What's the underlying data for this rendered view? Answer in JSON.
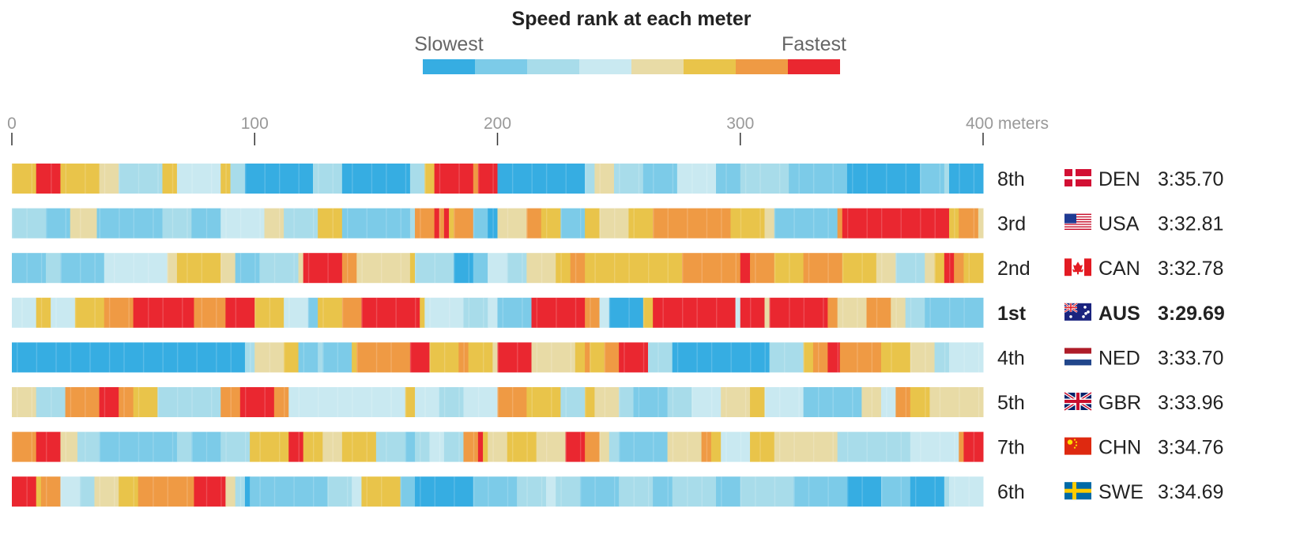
{
  "chart_data": {
    "type": "heatmap",
    "title": "Speed rank at each meter",
    "legend": {
      "low_label": "Slowest",
      "high_label": "Fastest",
      "colors": [
        "#36ade2",
        "#7ccbe8",
        "#a8dcea",
        "#c9e9f1",
        "#e8dba6",
        "#e9c44a",
        "#ef9a44",
        "#ea2730"
      ],
      "placement": "top-center"
    },
    "x_ticks": [
      0,
      100,
      200,
      300,
      400
    ],
    "x_tick_labels": [
      "0",
      "100",
      "200",
      "300",
      "400 meters"
    ],
    "x_range": [
      0,
      400
    ],
    "level_count": 8,
    "rows": [
      {
        "rank": "8th",
        "country": "DEN",
        "time": "3:35.70",
        "flag": "denmark-flag",
        "highlight": false,
        "segments": [
          [
            0,
            5
          ],
          [
            10,
            7
          ],
          [
            20,
            5
          ],
          [
            36,
            4
          ],
          [
            44,
            2
          ],
          [
            62,
            5
          ],
          [
            68,
            3
          ],
          [
            86,
            5
          ],
          [
            90,
            2
          ],
          [
            96,
            0
          ],
          [
            124,
            2
          ],
          [
            136,
            0
          ],
          [
            164,
            2
          ],
          [
            170,
            5
          ],
          [
            174,
            7
          ],
          [
            190,
            6
          ],
          [
            192,
            7
          ],
          [
            200,
            0
          ],
          [
            236,
            2
          ],
          [
            240,
            4
          ],
          [
            248,
            2
          ],
          [
            260,
            1
          ],
          [
            274,
            3
          ],
          [
            290,
            1
          ],
          [
            300,
            2
          ],
          [
            320,
            1
          ],
          [
            344,
            0
          ],
          [
            374,
            1
          ],
          [
            384,
            2
          ],
          [
            386,
            0
          ]
        ]
      },
      {
        "rank": "3rd",
        "country": "USA",
        "time": "3:32.81",
        "flag": "usa-flag",
        "highlight": false,
        "segments": [
          [
            0,
            2
          ],
          [
            14,
            1
          ],
          [
            24,
            4
          ],
          [
            35,
            1
          ],
          [
            62,
            2
          ],
          [
            74,
            1
          ],
          [
            86,
            3
          ],
          [
            104,
            4
          ],
          [
            112,
            2
          ],
          [
            126,
            5
          ],
          [
            136,
            1
          ],
          [
            164,
            2
          ],
          [
            166,
            6
          ],
          [
            174,
            7
          ],
          [
            176,
            6
          ],
          [
            178,
            7
          ],
          [
            180,
            5
          ],
          [
            182,
            6
          ],
          [
            190,
            1
          ],
          [
            196,
            0
          ],
          [
            200,
            4
          ],
          [
            212,
            6
          ],
          [
            218,
            5
          ],
          [
            226,
            1
          ],
          [
            236,
            5
          ],
          [
            242,
            4
          ],
          [
            254,
            5
          ],
          [
            264,
            6
          ],
          [
            296,
            5
          ],
          [
            310,
            4
          ],
          [
            314,
            1
          ],
          [
            340,
            6
          ],
          [
            342,
            7
          ],
          [
            386,
            5
          ],
          [
            390,
            6
          ],
          [
            398,
            4
          ]
        ]
      },
      {
        "rank": "2nd",
        "country": "CAN",
        "time": "3:32.78",
        "flag": "canada-flag",
        "highlight": false,
        "segments": [
          [
            0,
            1
          ],
          [
            14,
            2
          ],
          [
            20,
            1
          ],
          [
            38,
            3
          ],
          [
            64,
            4
          ],
          [
            68,
            5
          ],
          [
            86,
            4
          ],
          [
            92,
            1
          ],
          [
            102,
            2
          ],
          [
            118,
            4
          ],
          [
            120,
            7
          ],
          [
            136,
            6
          ],
          [
            142,
            4
          ],
          [
            164,
            5
          ],
          [
            166,
            2
          ],
          [
            182,
            0
          ],
          [
            190,
            1
          ],
          [
            196,
            3
          ],
          [
            204,
            2
          ],
          [
            212,
            4
          ],
          [
            224,
            5
          ],
          [
            230,
            6
          ],
          [
            236,
            5
          ],
          [
            276,
            6
          ],
          [
            300,
            7
          ],
          [
            304,
            6
          ],
          [
            314,
            5
          ],
          [
            326,
            6
          ],
          [
            342,
            5
          ],
          [
            356,
            4
          ],
          [
            364,
            2
          ],
          [
            376,
            4
          ],
          [
            380,
            5
          ],
          [
            384,
            7
          ],
          [
            388,
            6
          ],
          [
            392,
            5
          ]
        ]
      },
      {
        "rank": "1st",
        "country": "AUS",
        "time": "3:29.69",
        "flag": "australia-flag",
        "highlight": true,
        "segments": [
          [
            0,
            3
          ],
          [
            10,
            5
          ],
          [
            16,
            3
          ],
          [
            26,
            5
          ],
          [
            38,
            6
          ],
          [
            50,
            7
          ],
          [
            75,
            6
          ],
          [
            88,
            7
          ],
          [
            100,
            5
          ],
          [
            112,
            3
          ],
          [
            122,
            1
          ],
          [
            126,
            5
          ],
          [
            136,
            6
          ],
          [
            144,
            7
          ],
          [
            168,
            5
          ],
          [
            170,
            3
          ],
          [
            186,
            2
          ],
          [
            196,
            3
          ],
          [
            200,
            1
          ],
          [
            214,
            7
          ],
          [
            236,
            6
          ],
          [
            242,
            3
          ],
          [
            246,
            0
          ],
          [
            260,
            5
          ],
          [
            264,
            7
          ],
          [
            298,
            3
          ],
          [
            300,
            7
          ],
          [
            310,
            4
          ],
          [
            312,
            7
          ],
          [
            336,
            6
          ],
          [
            340,
            4
          ],
          [
            352,
            6
          ],
          [
            362,
            4
          ],
          [
            368,
            2
          ],
          [
            376,
            1
          ]
        ]
      },
      {
        "rank": "4th",
        "country": "NED",
        "time": "3:33.70",
        "flag": "netherlands-flag",
        "highlight": false,
        "segments": [
          [
            0,
            0
          ],
          [
            96,
            2
          ],
          [
            100,
            4
          ],
          [
            112,
            5
          ],
          [
            118,
            1
          ],
          [
            126,
            2
          ],
          [
            128,
            1
          ],
          [
            140,
            5
          ],
          [
            142,
            6
          ],
          [
            164,
            7
          ],
          [
            172,
            5
          ],
          [
            184,
            6
          ],
          [
            188,
            5
          ],
          [
            198,
            4
          ],
          [
            200,
            7
          ],
          [
            214,
            4
          ],
          [
            232,
            5
          ],
          [
            236,
            6
          ],
          [
            238,
            5
          ],
          [
            244,
            6
          ],
          [
            250,
            7
          ],
          [
            262,
            2
          ],
          [
            272,
            0
          ],
          [
            312,
            2
          ],
          [
            326,
            5
          ],
          [
            330,
            6
          ],
          [
            336,
            7
          ],
          [
            341,
            6
          ],
          [
            358,
            5
          ],
          [
            370,
            4
          ],
          [
            380,
            2
          ],
          [
            386,
            3
          ]
        ]
      },
      {
        "rank": "5th",
        "country": "GBR",
        "time": "3:33.96",
        "flag": "uk-flag",
        "highlight": false,
        "segments": [
          [
            0,
            4
          ],
          [
            10,
            2
          ],
          [
            22,
            6
          ],
          [
            36,
            7
          ],
          [
            44,
            6
          ],
          [
            50,
            5
          ],
          [
            60,
            2
          ],
          [
            86,
            6
          ],
          [
            94,
            7
          ],
          [
            108,
            6
          ],
          [
            114,
            3
          ],
          [
            162,
            5
          ],
          [
            166,
            3
          ],
          [
            176,
            2
          ],
          [
            186,
            3
          ],
          [
            200,
            6
          ],
          [
            212,
            5
          ],
          [
            226,
            2
          ],
          [
            236,
            5
          ],
          [
            240,
            4
          ],
          [
            250,
            2
          ],
          [
            256,
            1
          ],
          [
            270,
            2
          ],
          [
            280,
            3
          ],
          [
            292,
            4
          ],
          [
            304,
            5
          ],
          [
            310,
            3
          ],
          [
            326,
            1
          ],
          [
            350,
            4
          ],
          [
            358,
            3
          ],
          [
            364,
            6
          ],
          [
            370,
            5
          ],
          [
            378,
            4
          ]
        ]
      },
      {
        "rank": "7th",
        "country": "CHN",
        "time": "3:34.76",
        "flag": "china-flag",
        "highlight": false,
        "segments": [
          [
            0,
            6
          ],
          [
            10,
            7
          ],
          [
            20,
            4
          ],
          [
            27,
            2
          ],
          [
            36,
            1
          ],
          [
            68,
            2
          ],
          [
            74,
            1
          ],
          [
            86,
            2
          ],
          [
            98,
            5
          ],
          [
            114,
            7
          ],
          [
            120,
            5
          ],
          [
            128,
            4
          ],
          [
            136,
            5
          ],
          [
            150,
            2
          ],
          [
            162,
            1
          ],
          [
            166,
            2
          ],
          [
            172,
            3
          ],
          [
            178,
            2
          ],
          [
            186,
            6
          ],
          [
            192,
            7
          ],
          [
            194,
            5
          ],
          [
            196,
            4
          ],
          [
            204,
            5
          ],
          [
            216,
            4
          ],
          [
            228,
            7
          ],
          [
            236,
            6
          ],
          [
            242,
            4
          ],
          [
            246,
            2
          ],
          [
            250,
            1
          ],
          [
            270,
            4
          ],
          [
            284,
            6
          ],
          [
            288,
            5
          ],
          [
            292,
            3
          ],
          [
            304,
            5
          ],
          [
            314,
            4
          ],
          [
            340,
            2
          ],
          [
            370,
            3
          ],
          [
            390,
            6
          ],
          [
            392,
            7
          ]
        ]
      },
      {
        "rank": "6th",
        "country": "SWE",
        "time": "3:34.69",
        "flag": "sweden-flag",
        "highlight": false,
        "segments": [
          [
            0,
            7
          ],
          [
            10,
            5
          ],
          [
            12,
            6
          ],
          [
            20,
            3
          ],
          [
            28,
            2
          ],
          [
            34,
            4
          ],
          [
            44,
            5
          ],
          [
            52,
            6
          ],
          [
            75,
            7
          ],
          [
            88,
            4
          ],
          [
            92,
            2
          ],
          [
            96,
            0
          ],
          [
            98,
            1
          ],
          [
            130,
            2
          ],
          [
            140,
            3
          ],
          [
            144,
            5
          ],
          [
            160,
            1
          ],
          [
            166,
            0
          ],
          [
            190,
            1
          ],
          [
            208,
            2
          ],
          [
            220,
            3
          ],
          [
            224,
            2
          ],
          [
            234,
            1
          ],
          [
            250,
            2
          ],
          [
            264,
            1
          ],
          [
            272,
            2
          ],
          [
            290,
            1
          ],
          [
            300,
            2
          ],
          [
            322,
            1
          ],
          [
            344,
            0
          ],
          [
            358,
            1
          ],
          [
            370,
            0
          ],
          [
            384,
            2
          ],
          [
            386,
            3
          ]
        ]
      }
    ]
  }
}
